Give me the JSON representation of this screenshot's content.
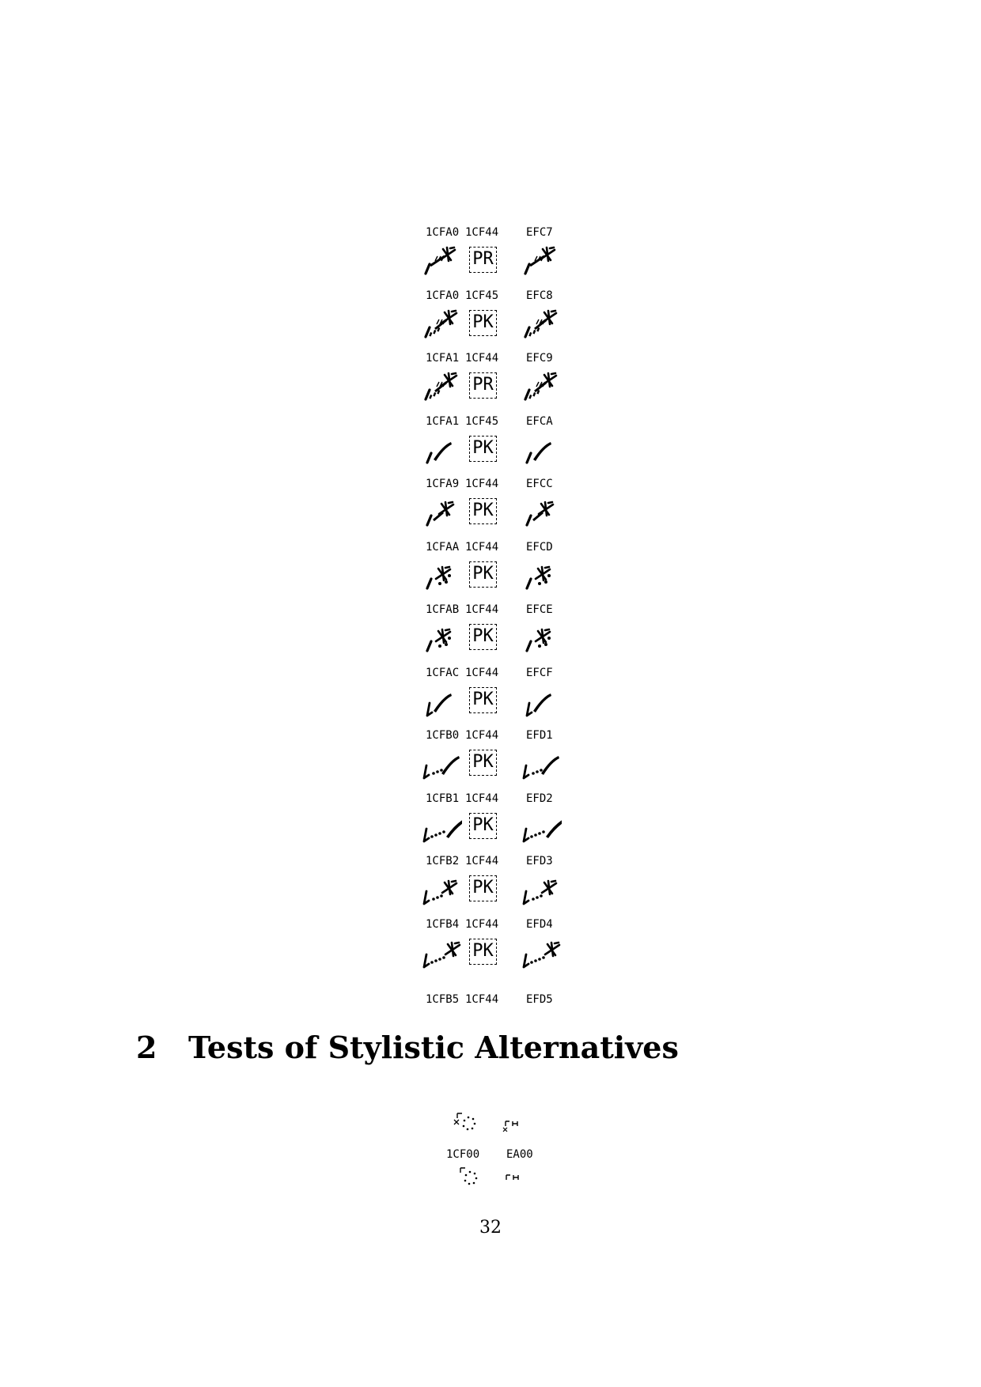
{
  "rows": [
    {
      "codes": [
        "1CFA0",
        "1CF44",
        "EFC7"
      ],
      "placeholder": "PR",
      "glyph": "ticks-star"
    },
    {
      "codes": [
        "1CFA0",
        "1CF45",
        "EFC8"
      ],
      "placeholder": "PK",
      "glyph": "ticks-dots-star"
    },
    {
      "codes": [
        "1CFA1",
        "1CF44",
        "EFC9"
      ],
      "placeholder": "PR",
      "glyph": "ticks-dots-star"
    },
    {
      "codes": [
        "1CFA1",
        "1CF45",
        "EFCA"
      ],
      "placeholder": "PK",
      "glyph": "stroke-curve"
    },
    {
      "codes": [
        "1CFA9",
        "1CF44",
        "EFCC"
      ],
      "placeholder": "PK",
      "glyph": "stroke-star"
    },
    {
      "codes": [
        "1CFAA",
        "1CF44",
        "EFCD"
      ],
      "placeholder": "PK",
      "glyph": "stroke-star-dots"
    },
    {
      "codes": [
        "1CFAB",
        "1CF44",
        "EFCE"
      ],
      "placeholder": "PK",
      "glyph": "stroke-star-dots"
    },
    {
      "codes": [
        "1CFAC",
        "1CF44",
        "EFCF"
      ],
      "placeholder": "PK",
      "glyph": "hook-curve"
    },
    {
      "codes": [
        "1CFB0",
        "1CF44",
        "EFD1"
      ],
      "placeholder": "PK",
      "glyph": "hook-dots-curve"
    },
    {
      "codes": [
        "1CFB1",
        "1CF44",
        "EFD2"
      ],
      "placeholder": "PK",
      "glyph": "hook-dots-long-curve"
    },
    {
      "codes": [
        "1CFB2",
        "1CF44",
        "EFD3"
      ],
      "placeholder": "PK",
      "glyph": "hook-dots-star"
    },
    {
      "codes": [
        "1CFB4",
        "1CF44",
        "EFD4"
      ],
      "placeholder": "PK",
      "glyph": "hook-dots-long-star"
    }
  ],
  "last_codes": [
    "1CFB5",
    "1CF44",
    "EFD5"
  ],
  "section": {
    "number": "2",
    "title": "Tests of Stylistic Alternatives"
  },
  "stylistic": {
    "codes": [
      "1CF00",
      "EA00"
    ]
  },
  "page_number": "32"
}
